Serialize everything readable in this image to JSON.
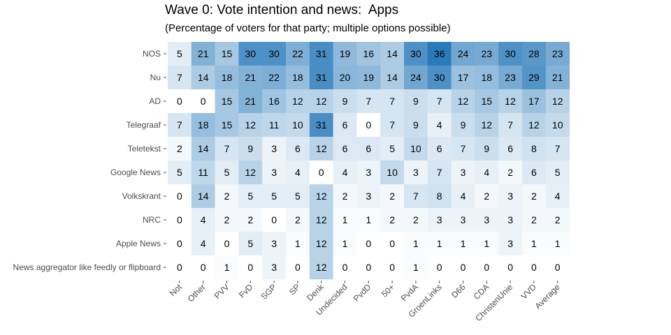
{
  "chart_data": {
    "type": "heatmap",
    "title": "Wave 0: Vote intention and news:  Apps",
    "subtitle": "(Percentage of voters for that party; multiple options possible)",
    "columns": [
      "Not",
      "Other",
      "PVV",
      "FvD",
      "SGP",
      "SP",
      "Denk",
      "Undecided",
      "PvdD",
      "50+",
      "PvdA",
      "GroenLinks",
      "D66",
      "CDA",
      "ChristenUnie",
      "VVD",
      "Average"
    ],
    "rows": [
      "NOS",
      "Nu",
      "AD",
      "Telegraaf",
      "Teletekst",
      "Google News",
      "Volkskrant",
      "NRC",
      "Apple News",
      "News aggregator like feedly or flipboard"
    ],
    "values": [
      [
        5,
        21,
        15,
        30,
        30,
        22,
        31,
        19,
        16,
        14,
        30,
        36,
        24,
        23,
        30,
        28,
        23
      ],
      [
        7,
        14,
        18,
        21,
        22,
        18,
        31,
        20,
        19,
        14,
        24,
        30,
        17,
        18,
        23,
        29,
        21
      ],
      [
        0,
        0,
        15,
        21,
        16,
        12,
        12,
        9,
        7,
        7,
        9,
        7,
        12,
        15,
        12,
        17,
        12
      ],
      [
        7,
        18,
        15,
        12,
        11,
        10,
        31,
        6,
        0,
        7,
        9,
        4,
        9,
        12,
        7,
        12,
        10
      ],
      [
        2,
        14,
        7,
        9,
        3,
        6,
        12,
        6,
        6,
        5,
        10,
        6,
        7,
        9,
        6,
        8,
        7
      ],
      [
        5,
        11,
        5,
        12,
        3,
        4,
        0,
        4,
        3,
        10,
        3,
        7,
        3,
        4,
        2,
        6,
        5
      ],
      [
        0,
        14,
        2,
        5,
        5,
        5,
        12,
        2,
        3,
        2,
        7,
        8,
        4,
        2,
        3,
        2,
        4
      ],
      [
        0,
        4,
        2,
        2,
        0,
        2,
        12,
        1,
        1,
        2,
        2,
        3,
        3,
        3,
        3,
        2,
        2
      ],
      [
        0,
        4,
        0,
        5,
        3,
        1,
        12,
        1,
        0,
        0,
        1,
        1,
        1,
        1,
        3,
        1,
        1
      ],
      [
        0,
        0,
        1,
        0,
        3,
        0,
        12,
        0,
        0,
        0,
        1,
        0,
        0,
        0,
        0,
        0,
        0
      ]
    ],
    "color_low": "#ffffff",
    "color_high": "#2b7bba",
    "value_range": [
      0,
      36
    ],
    "legend": "none",
    "grid": false
  }
}
